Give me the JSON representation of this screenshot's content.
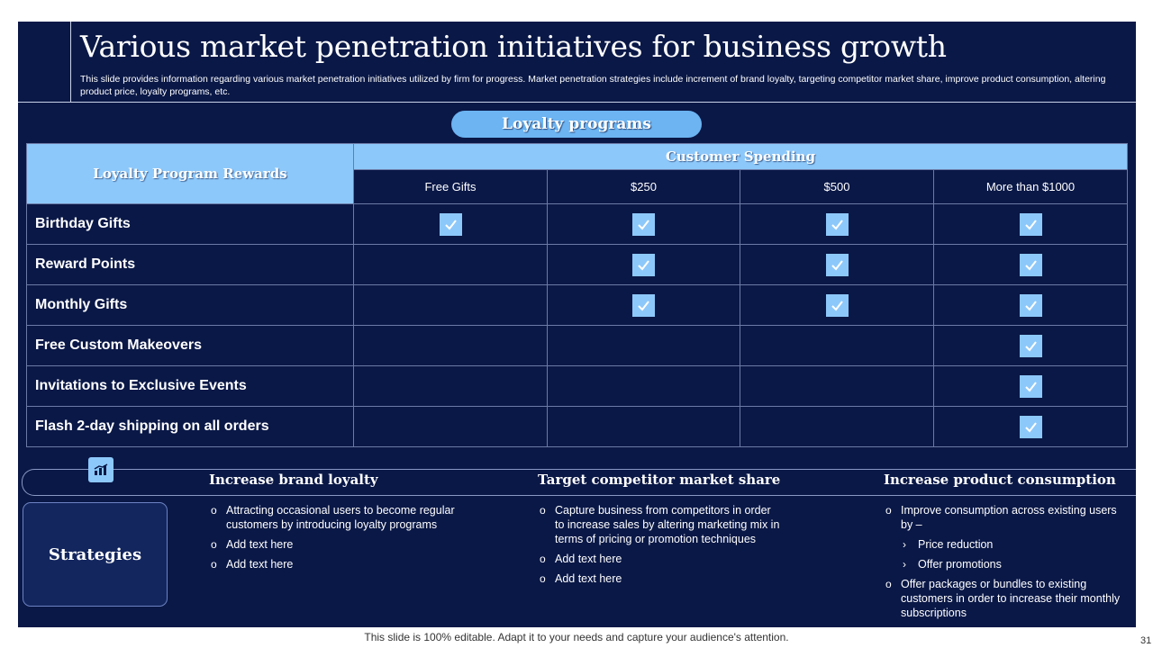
{
  "slide": {
    "title": "Various market penetration initiatives for business growth",
    "subtitle": "This slide provides information regarding various market penetration initiatives utilized by firm for progress. Market penetration strategies include increment of brand loyalty,  targeting competitor market share, improve product consumption, altering product price, loyalty programs, etc."
  },
  "loyalty": {
    "pill_label": "Loyalty programs",
    "rewards_header": "Loyalty Program Rewards",
    "spending_header": "Customer Spending",
    "columns": [
      "Free Gifts",
      "$250",
      "$500",
      "More than $1000"
    ],
    "rows": [
      {
        "label": "Birthday Gifts",
        "checks": [
          true,
          true,
          true,
          true
        ]
      },
      {
        "label": "Reward Points",
        "checks": [
          false,
          true,
          true,
          true
        ]
      },
      {
        "label": "Monthly Gifts",
        "checks": [
          false,
          true,
          true,
          true
        ]
      },
      {
        "label": "Free Custom Makeovers",
        "checks": [
          false,
          false,
          false,
          true
        ]
      },
      {
        "label": "Invitations to Exclusive Events",
        "checks": [
          false,
          false,
          false,
          true
        ]
      },
      {
        "label": "Flash 2-day shipping on all orders",
        "checks": [
          false,
          false,
          false,
          true
        ]
      }
    ]
  },
  "strategies": {
    "label": "Strategies",
    "icon": "chart-icon",
    "columns": [
      {
        "heading": "Increase brand loyalty",
        "items": [
          {
            "text": "Attracting occasional users to become regular customers by introducing loyalty programs"
          },
          {
            "text": "Add text here"
          },
          {
            "text": "Add text here"
          }
        ]
      },
      {
        "heading": "Target competitor market share",
        "items": [
          {
            "text": "Capture business from competitors in order to increase sales by altering marketing mix in terms of pricing or promotion techniques"
          },
          {
            "text": "Add text here"
          },
          {
            "text": "Add text here"
          }
        ]
      },
      {
        "heading": "Increase product consumption",
        "items": [
          {
            "text": "Improve  consumption across existing users by –"
          },
          {
            "text": "Price reduction",
            "sub": true
          },
          {
            "text": "Offer promotions",
            "sub": true
          },
          {
            "text": "Offer packages or bundles to existing customers in order to increase their monthly subscriptions"
          }
        ]
      }
    ]
  },
  "footer": {
    "note": "This slide is 100% editable. Adapt it to your needs and capture your audience's attention.",
    "page_number": "31"
  },
  "colors": {
    "slide_bg": "#0a1847",
    "accent_light_blue": "#8dc8fa",
    "pill_blue": "#6cb4f2",
    "grid_line": "#6b7aa6"
  }
}
